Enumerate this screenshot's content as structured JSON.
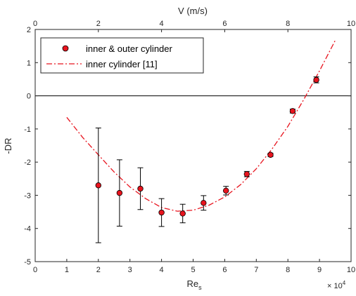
{
  "chart_data": {
    "type": "scatter",
    "xlabel": "Re",
    "xlabel_subscript": "s",
    "ylabel": "-DR",
    "top_xlabel": "V (m/s)",
    "xlim": [
      0,
      10
    ],
    "ylim": [
      -5,
      2
    ],
    "top_xlim": [
      0,
      10
    ],
    "x_ticks": [
      "0",
      "1",
      "2",
      "3",
      "4",
      "5",
      "6",
      "7",
      "8",
      "9",
      "10"
    ],
    "y_ticks": [
      "-5",
      "-4",
      "-3",
      "-2",
      "-1",
      "0",
      "1",
      "2"
    ],
    "top_x_ticks": [
      "0",
      "2",
      "4",
      "6",
      "8",
      "10"
    ],
    "x_multiplier": "× 10",
    "x_multiplier_exp": "4",
    "grid": false,
    "zero_line": true,
    "legend_position": "top-left",
    "series": [
      {
        "name": "inner & outer cylinder",
        "style": "markers-with-errorbars",
        "color": "#e8141e",
        "x": [
          2.0,
          2.67,
          3.33,
          4.0,
          4.67,
          5.33,
          6.04,
          6.7,
          7.45,
          8.15,
          8.9
        ],
        "y": [
          -2.7,
          -2.93,
          -2.8,
          -3.52,
          -3.55,
          -3.23,
          -2.86,
          -2.36,
          -1.78,
          -0.46,
          0.48
        ],
        "err": [
          1.73,
          1.0,
          0.63,
          0.42,
          0.28,
          0.22,
          0.13,
          0.08,
          0.05,
          0.06,
          0.09
        ]
      },
      {
        "name": "inner cylinder [11]",
        "style": "dash-dot",
        "color": "#e8141e",
        "x": [
          1.0,
          1.5,
          2.0,
          2.5,
          3.0,
          3.5,
          4.0,
          4.5,
          5.0,
          5.5,
          6.0,
          6.5,
          7.0,
          7.5,
          8.0,
          8.5,
          9.0,
          9.5
        ],
        "y": [
          -0.65,
          -1.25,
          -1.78,
          -2.3,
          -2.75,
          -3.1,
          -3.37,
          -3.48,
          -3.45,
          -3.3,
          -3.05,
          -2.68,
          -2.2,
          -1.6,
          -0.92,
          -0.12,
          0.75,
          1.67
        ]
      }
    ]
  }
}
